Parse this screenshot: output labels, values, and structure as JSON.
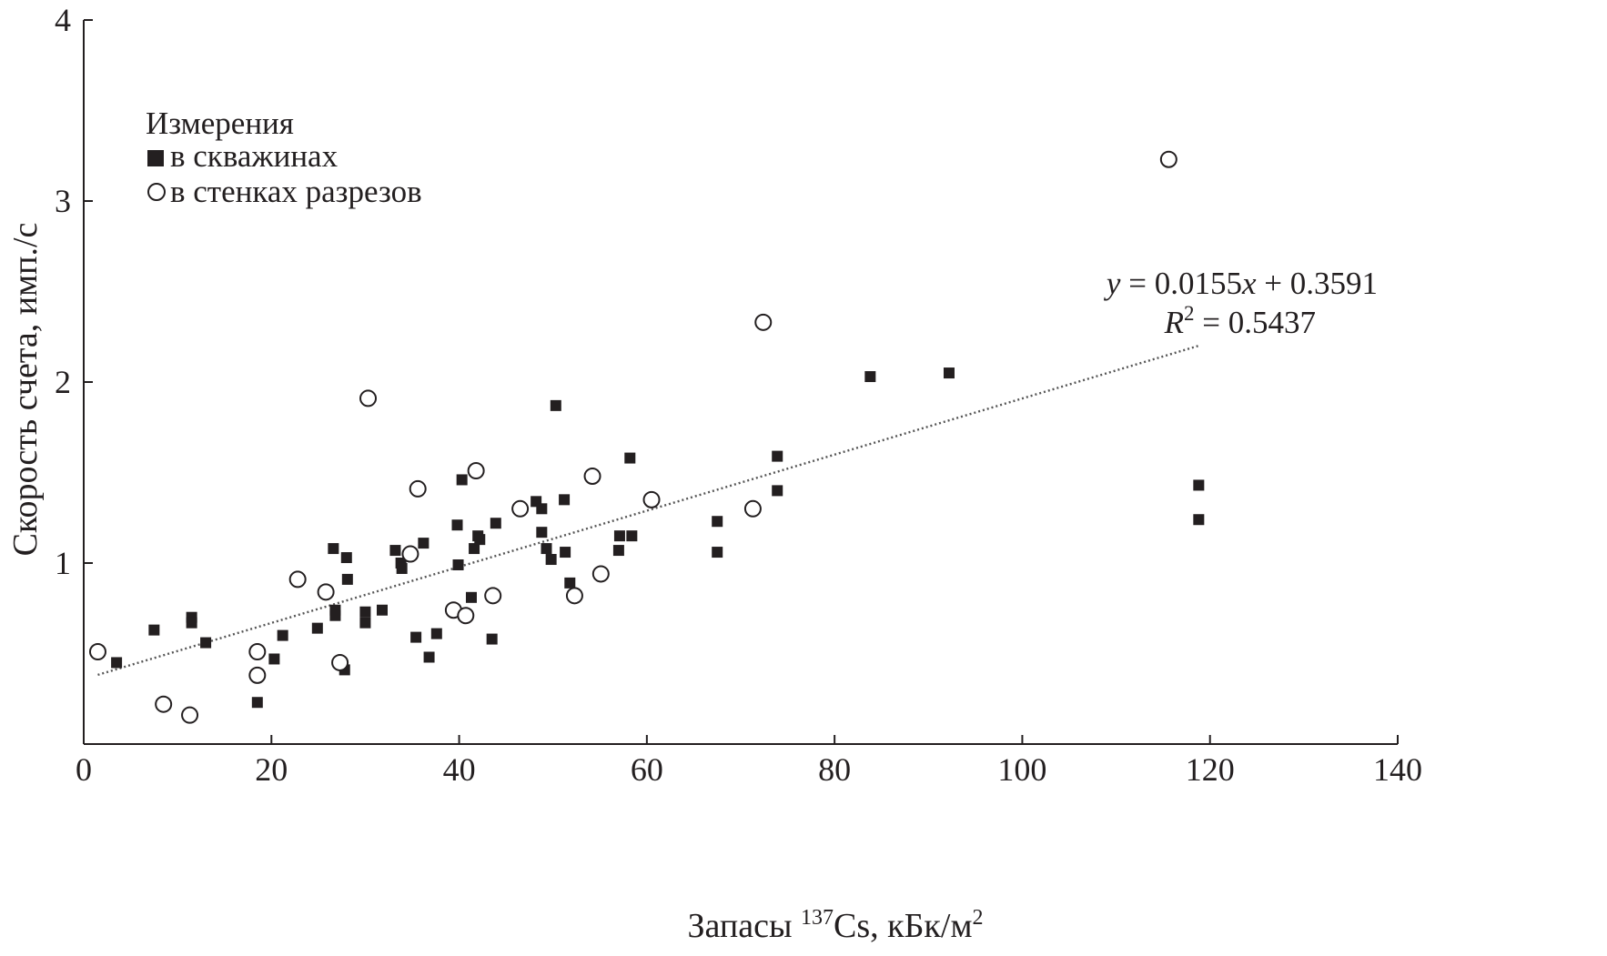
{
  "chart_data": {
    "type": "scatter",
    "xlabel": "Запасы ¹³⁷Cs, кБк/м²",
    "xlabel_parts": {
      "pre": "Запасы ",
      "isotope": "137",
      "element": "Cs, кБк/м",
      "sup": "2"
    },
    "ylabel": "Скорость счета, имп./с",
    "xlim": [
      0,
      140
    ],
    "ylim": [
      0,
      4
    ],
    "x_ticks": [
      0,
      20,
      40,
      60,
      80,
      100,
      120,
      140
    ],
    "y_ticks": [
      1,
      2,
      3,
      4
    ],
    "grid": false,
    "legend": {
      "title": "Измерения",
      "placement": "top-left",
      "entries": [
        "в скважинах",
        "в стенках разрезов"
      ]
    },
    "series": [
      {
        "name": "в скважинах",
        "marker": "filled-square",
        "x": [
          3.5,
          7.5,
          11.5,
          11.5,
          13.0,
          18.5,
          20.3,
          21.2,
          24.9,
          26.6,
          26.8,
          26.8,
          27.8,
          28.0,
          28.1,
          30.0,
          30.0,
          31.8,
          33.2,
          33.8,
          33.9,
          35.4,
          36.2,
          36.8,
          37.6,
          39.8,
          39.9,
          40.3,
          41.3,
          41.6,
          42.0,
          42.2,
          43.5,
          43.9,
          48.2,
          48.8,
          48.8,
          49.3,
          49.8,
          50.3,
          51.2,
          51.3,
          51.8,
          57.0,
          57.1,
          58.2,
          58.4,
          67.5,
          67.5,
          73.9,
          73.9,
          83.8,
          92.2,
          118.8,
          118.8
        ],
        "y": [
          0.45,
          0.63,
          0.7,
          0.67,
          0.56,
          0.23,
          0.47,
          0.6,
          0.64,
          1.08,
          0.74,
          0.71,
          0.41,
          1.03,
          0.91,
          0.73,
          0.67,
          0.74,
          1.07,
          1.0,
          0.97,
          0.59,
          1.11,
          0.48,
          0.61,
          1.21,
          0.99,
          1.46,
          0.81,
          1.08,
          1.15,
          1.13,
          0.58,
          1.22,
          1.34,
          1.3,
          1.17,
          1.08,
          1.02,
          1.87,
          1.35,
          1.06,
          0.89,
          1.07,
          1.15,
          1.58,
          1.15,
          1.23,
          1.06,
          1.59,
          1.4,
          2.03,
          2.05,
          1.43,
          1.24
        ]
      },
      {
        "name": "в стенках разрезов",
        "marker": "open-circle",
        "x": [
          1.5,
          8.5,
          11.3,
          18.5,
          18.5,
          22.8,
          25.8,
          27.3,
          30.3,
          34.8,
          35.6,
          39.4,
          40.7,
          41.8,
          43.6,
          46.5,
          52.3,
          54.2,
          55.1,
          60.5,
          71.3,
          72.4,
          115.6
        ],
        "y": [
          0.51,
          0.22,
          0.16,
          0.38,
          0.51,
          0.91,
          0.84,
          0.45,
          1.91,
          1.05,
          1.41,
          0.74,
          0.71,
          1.51,
          0.82,
          1.3,
          0.82,
          1.48,
          0.94,
          1.35,
          1.3,
          2.33,
          3.23
        ]
      }
    ],
    "trendline": {
      "style": "dotted",
      "slope": 0.0155,
      "intercept": 0.3591,
      "x_range": [
        1.5,
        118.8
      ]
    },
    "annotations": {
      "equation": {
        "y_var": "y",
        "rhs": " = 0.0155",
        "x_var": "x",
        "rest": " + 0.3591"
      },
      "r2": {
        "r": "R",
        "sup": "2",
        "rest": " = 0.5437"
      }
    },
    "colors": {
      "ink": "#231f20",
      "trend": "#555555",
      "background": "#ffffff"
    }
  }
}
